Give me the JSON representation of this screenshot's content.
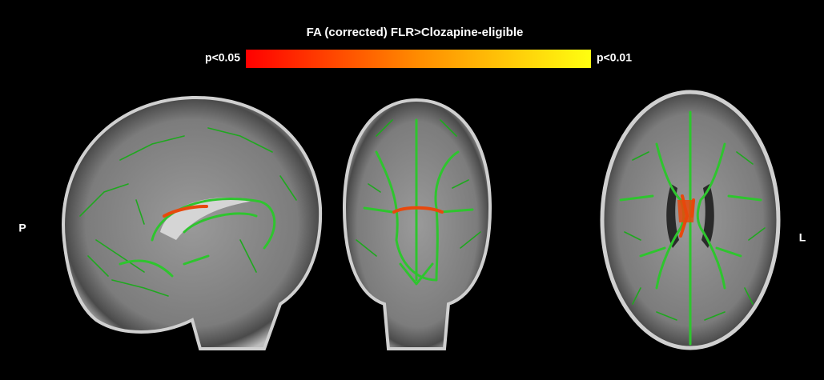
{
  "figure": {
    "title": "FA (corrected) FLR>Clozapine-eligible",
    "colorbar": {
      "low_label": "p<0.05",
      "high_label": "p<0.01"
    },
    "orientation": {
      "left_label": "P",
      "right_label": "L"
    }
  }
}
